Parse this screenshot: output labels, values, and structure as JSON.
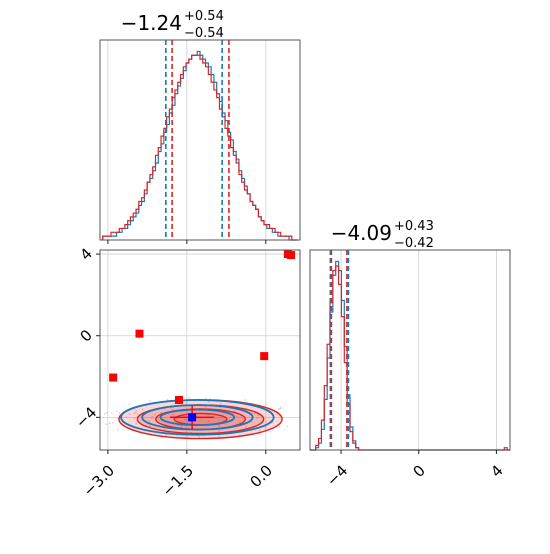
{
  "chart_data": [
    {
      "type": "histogram",
      "panel": "top-left",
      "title": {
        "value": "−1.24",
        "upper": "+0.54",
        "lower": "−0.54"
      },
      "xlim": [
        -3.15,
        0.65
      ],
      "x_ticks": [
        -3.0,
        -1.5,
        0.0
      ],
      "grid": true,
      "quantile_lines": [
        {
          "series": "blue",
          "x": [
            -1.9,
            -0.83
          ]
        },
        {
          "series": "red",
          "x": [
            -1.78,
            -0.7
          ]
        }
      ],
      "series": [
        {
          "name": "blue",
          "color": "#1f77b4",
          "bin_edges": [
            -3.1,
            0.6
          ],
          "counts": [
            1,
            1,
            1,
            1,
            1,
            2,
            2,
            3,
            3,
            4,
            5,
            6,
            7,
            9,
            10,
            12,
            15,
            16,
            18,
            20,
            23,
            25,
            28,
            30,
            33,
            35,
            38,
            40,
            42,
            44,
            46,
            47,
            48,
            48,
            49,
            48,
            47,
            46,
            45,
            43,
            41,
            38,
            36,
            33,
            31,
            28,
            26,
            23,
            21,
            18,
            16,
            14,
            12,
            10,
            9,
            8,
            6,
            5,
            4,
            3,
            3,
            2,
            2,
            1,
            1,
            1,
            1,
            0,
            0,
            0
          ]
        },
        {
          "name": "red",
          "color": "#d62728",
          "bin_edges": [
            -3.1,
            0.6
          ],
          "counts": [
            1,
            1,
            1,
            2,
            2,
            2,
            3,
            3,
            4,
            5,
            6,
            7,
            8,
            10,
            11,
            13,
            15,
            17,
            19,
            22,
            24,
            27,
            29,
            32,
            34,
            37,
            39,
            41,
            43,
            45,
            46,
            47,
            48,
            48,
            48,
            47,
            46,
            45,
            43,
            41,
            39,
            37,
            34,
            32,
            29,
            27,
            24,
            22,
            20,
            17,
            15,
            13,
            12,
            10,
            9,
            8,
            6,
            5,
            4,
            4,
            3,
            3,
            2,
            2,
            1,
            1,
            1,
            1,
            0,
            0
          ]
        }
      ]
    },
    {
      "type": "histogram",
      "panel": "bottom-right",
      "title": {
        "value": "−4.09",
        "upper": "+0.43",
        "lower": "−0.42"
      },
      "xlim": [
        -5.6,
        4.7
      ],
      "x_ticks": [
        -4,
        0,
        4
      ],
      "grid": true,
      "quantile_lines": [
        {
          "series": "blue",
          "x": [
            -4.55,
            -3.62
          ]
        },
        {
          "series": "red",
          "x": [
            -4.5,
            -3.7
          ]
        }
      ],
      "series": [
        {
          "name": "blue",
          "color": "#1f77b4",
          "bin_edges": [
            -5.6,
            4.7
          ],
          "counts": [
            0,
            0,
            1,
            3,
            9,
            22,
            40,
            60,
            76,
            82,
            78,
            65,
            45,
            24,
            10,
            4,
            1,
            0,
            0,
            0,
            0,
            0,
            0,
            0,
            0,
            0,
            0,
            0,
            0,
            0,
            0,
            0,
            0,
            0,
            0,
            0,
            0,
            0,
            0,
            0,
            0,
            0,
            0,
            0,
            0,
            0,
            0,
            0,
            0,
            0,
            0,
            0,
            0,
            0,
            0,
            0,
            0,
            0,
            0,
            0,
            0,
            0,
            0,
            0,
            0,
            0,
            0,
            0,
            0,
            0
          ]
        },
        {
          "name": "red",
          "color": "#d62728",
          "bin_edges": [
            -5.6,
            4.7
          ],
          "counts": [
            0,
            0,
            2,
            5,
            13,
            28,
            46,
            64,
            78,
            80,
            72,
            58,
            38,
            20,
            8,
            3,
            1,
            0,
            0,
            0,
            0,
            0,
            0,
            0,
            0,
            0,
            0,
            0,
            0,
            0,
            0,
            0,
            0,
            0,
            0,
            0,
            0,
            0,
            0,
            0,
            0,
            0,
            0,
            0,
            0,
            0,
            0,
            0,
            0,
            0,
            0,
            0,
            0,
            0,
            0,
            0,
            0,
            0,
            0,
            0,
            0,
            0,
            0,
            0,
            0,
            0,
            0,
            0,
            1,
            0
          ]
        }
      ]
    },
    {
      "type": "scatter",
      "panel": "bottom-left",
      "xlim": [
        -3.15,
        0.65
      ],
      "ylim": [
        -5.6,
        4.2
      ],
      "x_ticks": [
        -3.0,
        -1.5,
        0.0
      ],
      "y_ticks": [
        -4,
        0,
        4
      ],
      "x_tick_labels": [
        "−3.0",
        "−1.5",
        "0.0"
      ],
      "y_tick_labels": [
        "−4",
        "0",
        "4"
      ],
      "grid": true,
      "contours": [
        {
          "color": "#d62728",
          "center": [
            -1.24,
            -4.09
          ],
          "radii": [
            [
              1.55,
              0.95
            ],
            [
              1.2,
              0.7
            ],
            [
              0.85,
              0.5
            ],
            [
              0.5,
              0.28
            ]
          ]
        },
        {
          "color": "#1f77b4",
          "center": [
            -1.3,
            -4.0
          ],
          "radii": [
            [
              1.45,
              0.85
            ],
            [
              1.05,
              0.6
            ],
            [
              0.7,
              0.38
            ]
          ]
        }
      ],
      "points": [
        {
          "x": -2.9,
          "y": -2.05,
          "color": "#ff0000"
        },
        {
          "x": -2.4,
          "y": 0.1,
          "color": "#ff0000"
        },
        {
          "x": -0.03,
          "y": -1.0,
          "color": "#ff0000"
        },
        {
          "x": 0.42,
          "y": 4.0,
          "color": "#ff0000"
        },
        {
          "x": 0.48,
          "y": 3.95,
          "color": "#ff0000"
        },
        {
          "x": -1.65,
          "y": -3.15,
          "color": "#ff0000"
        },
        {
          "x": -1.4,
          "y": -4.0,
          "color": "#0000ff"
        }
      ],
      "crosshair": {
        "x": -1.4,
        "y": -4.0,
        "color": "#ff0000"
      }
    }
  ]
}
